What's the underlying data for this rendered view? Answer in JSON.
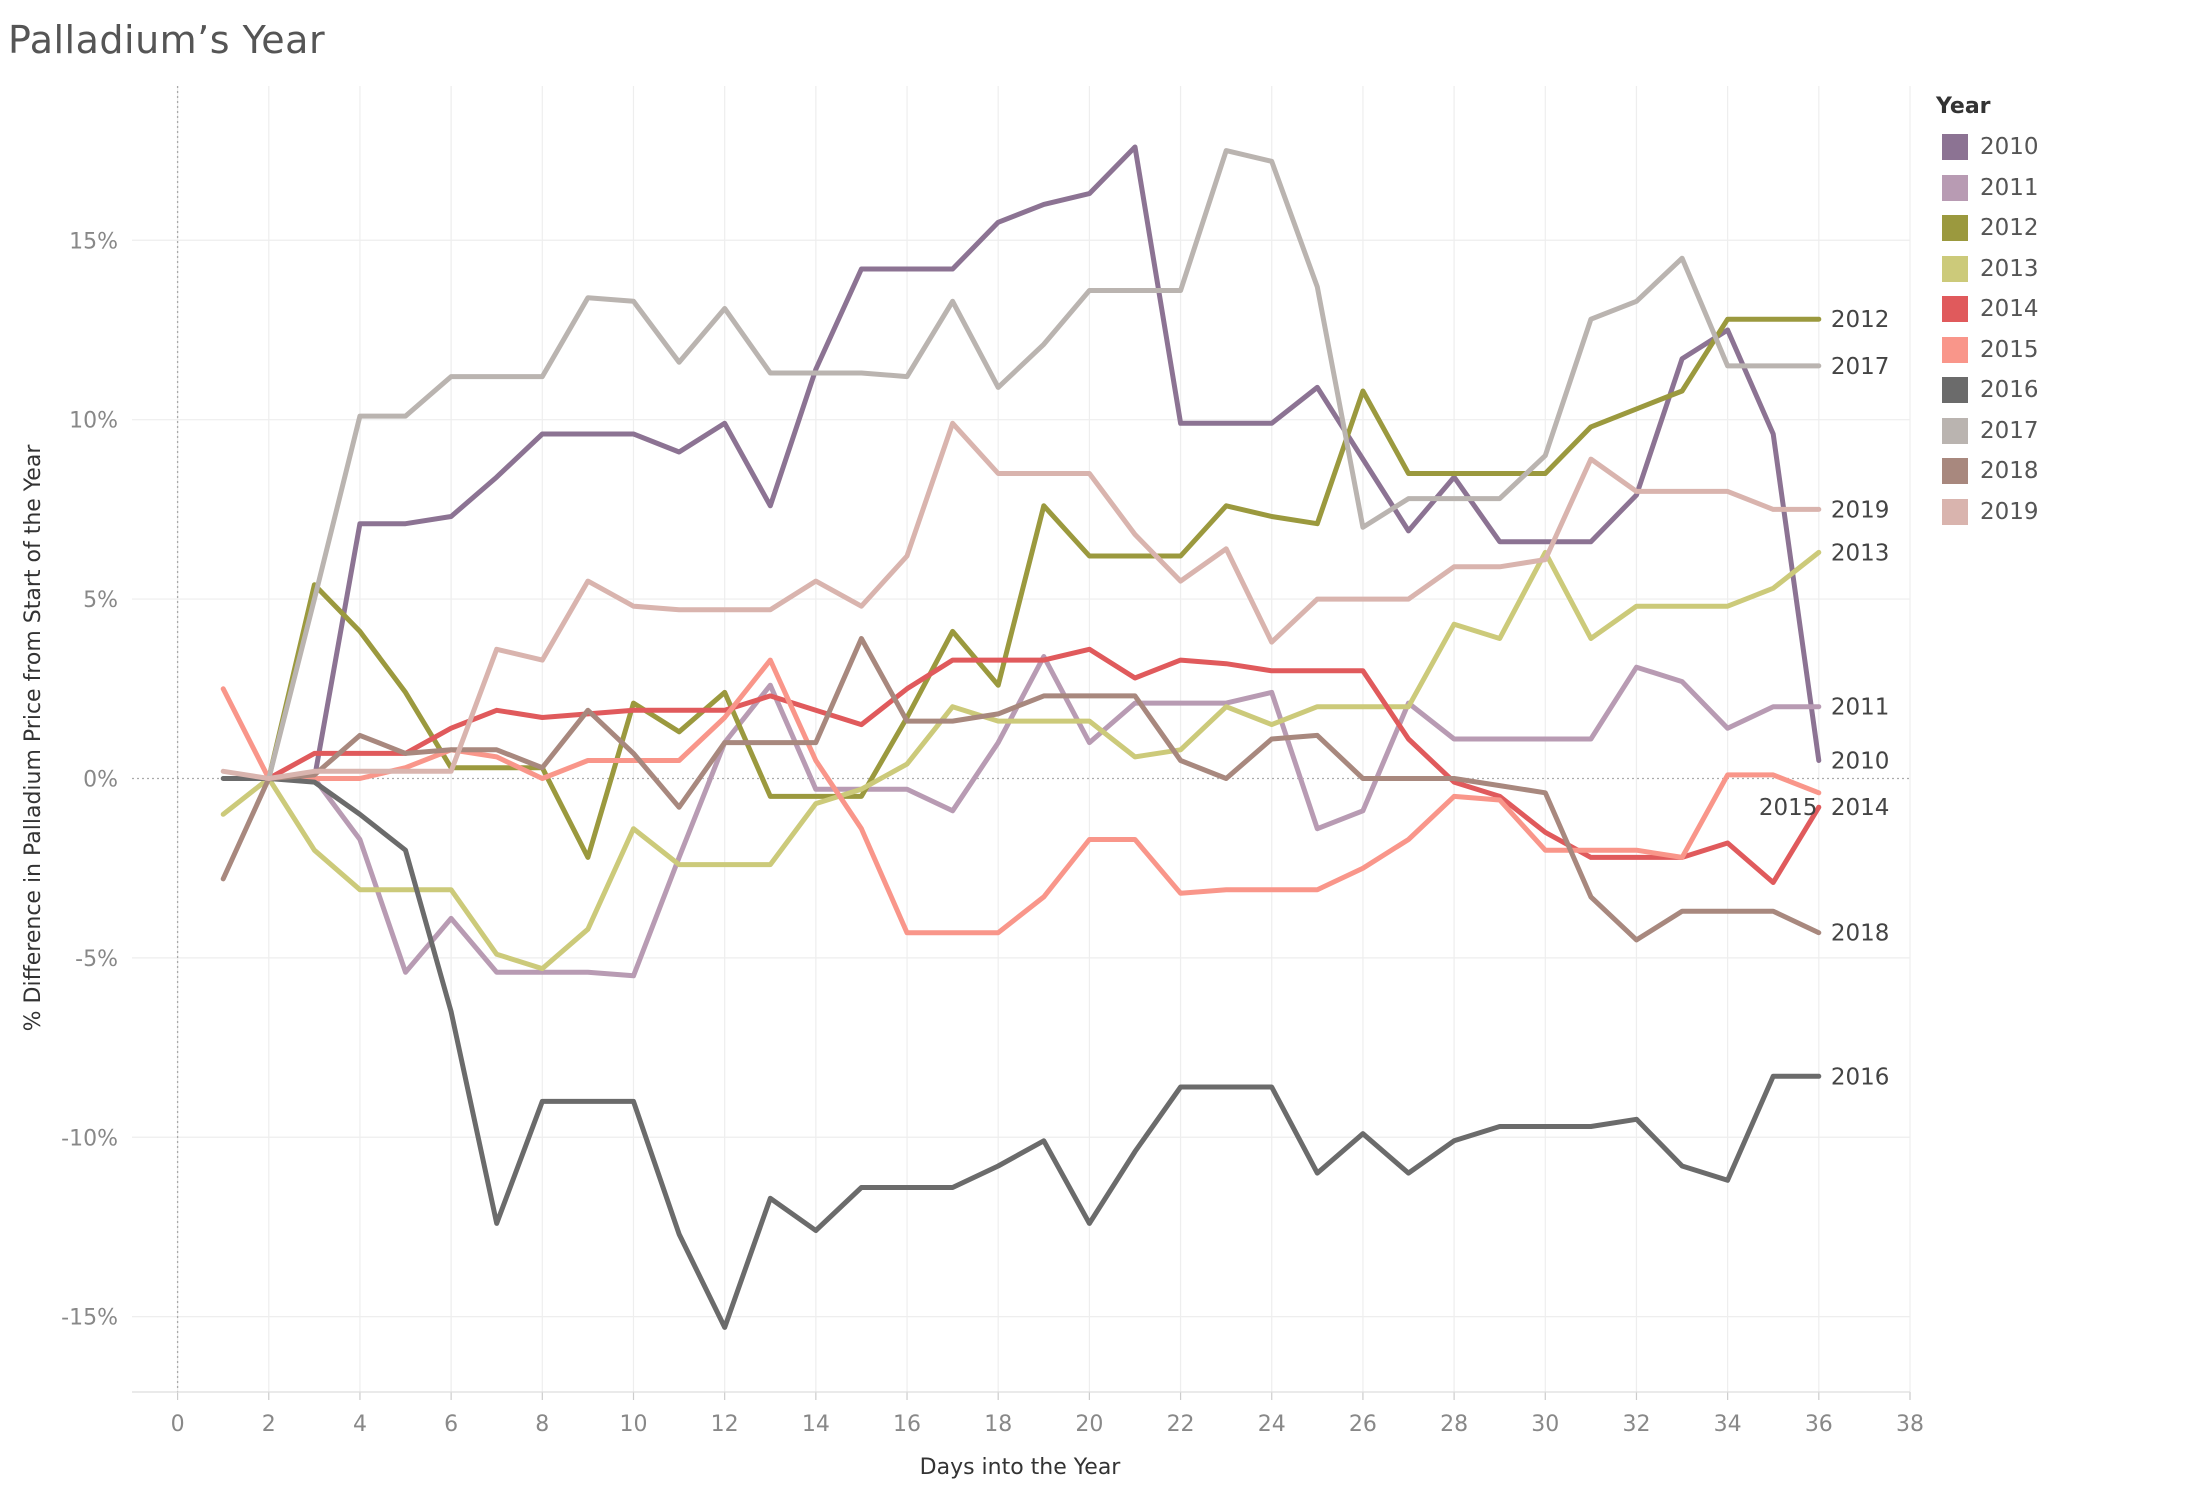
{
  "chart_data": {
    "type": "line",
    "title": "Palladium’s Year",
    "xlabel": "Days into the Year",
    "ylabel": "% Difference in Palladium Price from Start of the Year",
    "xlim": [
      -1,
      38
    ],
    "ylim": [
      -17.1,
      19.3
    ],
    "x_ticks": [
      0,
      2,
      4,
      6,
      8,
      10,
      12,
      14,
      16,
      18,
      20,
      22,
      24,
      26,
      28,
      30,
      32,
      34,
      36,
      38
    ],
    "y_ticks": [
      -15,
      -10,
      -5,
      0,
      5,
      10,
      15
    ],
    "y_tick_labels": [
      "-15%",
      "-10%",
      "-5%",
      "0%",
      "5%",
      "10%",
      "15%"
    ],
    "grid": true,
    "legend_title": "Year",
    "legend_position": "right",
    "x": [
      1,
      2,
      3,
      4,
      5,
      6,
      7,
      8,
      9,
      10,
      11,
      12,
      13,
      14,
      15,
      16,
      17,
      18,
      19,
      20,
      21,
      22,
      23,
      24,
      25,
      26,
      27,
      28,
      29,
      30,
      31,
      32,
      33,
      34,
      35,
      36
    ],
    "series": [
      {
        "name": "2010",
        "color": "#8c7393",
        "end_label": "2010",
        "values": [
          null,
          0,
          0,
          7.1,
          7.1,
          7.3,
          8.4,
          9.6,
          9.6,
          9.6,
          9.1,
          9.9,
          7.6,
          11.4,
          14.2,
          14.2,
          14.2,
          15.5,
          16.0,
          16.3,
          17.6,
          9.9,
          9.9,
          9.9,
          10.9,
          8.9,
          6.9,
          8.4,
          6.6,
          6.6,
          6.6,
          7.9,
          11.7,
          12.5,
          9.6,
          0.5
        ]
      },
      {
        "name": "2011",
        "color": "#b89bb3",
        "end_label": "2011",
        "values": [
          null,
          0,
          0,
          -1.7,
          -5.4,
          -3.9,
          -5.4,
          -5.4,
          -5.4,
          -5.5,
          -2.2,
          1.0,
          2.6,
          -0.3,
          -0.3,
          -0.3,
          -0.9,
          1.0,
          3.4,
          1.0,
          2.1,
          2.1,
          2.1,
          2.4,
          -1.4,
          -0.9,
          2.1,
          1.1,
          1.1,
          1.1,
          1.1,
          3.1,
          2.7,
          1.4,
          2.0,
          2.0
        ]
      },
      {
        "name": "2012",
        "color": "#9b993e",
        "end_label": "2012",
        "values": [
          null,
          0,
          5.4,
          4.1,
          2.4,
          0.3,
          0.3,
          0.3,
          -2.2,
          2.1,
          1.3,
          2.4,
          -0.5,
          -0.5,
          -0.5,
          1.7,
          4.1,
          2.6,
          7.6,
          6.2,
          6.2,
          6.2,
          7.6,
          7.3,
          7.1,
          10.8,
          8.5,
          8.5,
          8.5,
          8.5,
          9.8,
          10.3,
          10.8,
          12.8,
          12.8,
          12.8
        ]
      },
      {
        "name": "2013",
        "color": "#ccca7a",
        "end_label": "2013",
        "values": [
          -1.0,
          0,
          -2.0,
          -3.1,
          -3.1,
          -3.1,
          -4.9,
          -5.3,
          -4.2,
          -1.4,
          -2.4,
          -2.4,
          -2.4,
          -0.7,
          -0.3,
          0.4,
          2.0,
          1.6,
          1.6,
          1.6,
          0.6,
          0.8,
          2.0,
          1.5,
          2.0,
          2.0,
          2.0,
          4.3,
          3.9,
          6.3,
          3.9,
          4.8,
          4.8,
          4.8,
          5.3,
          6.3
        ]
      },
      {
        "name": "2014",
        "color": "#e05a5c",
        "end_label": "2014",
        "values": [
          null,
          0,
          0.7,
          0.7,
          0.7,
          1.4,
          1.9,
          1.7,
          1.8,
          1.9,
          1.9,
          1.9,
          2.3,
          1.9,
          1.5,
          2.5,
          3.3,
          3.3,
          3.3,
          3.6,
          2.8,
          3.3,
          3.2,
          3.0,
          3.0,
          3.0,
          1.1,
          -0.1,
          -0.5,
          -1.5,
          -2.2,
          -2.2,
          -2.2,
          -1.8,
          -2.9,
          -0.8
        ]
      },
      {
        "name": "2015",
        "color": "#f9968a",
        "end_label": "2015",
        "values": [
          2.5,
          0,
          0,
          0,
          0.3,
          0.8,
          0.6,
          0,
          0.5,
          0.5,
          0.5,
          1.7,
          3.3,
          0.5,
          -1.4,
          -4.3,
          -4.3,
          -4.3,
          -3.3,
          -1.7,
          -1.7,
          -3.2,
          -3.1,
          -3.1,
          -3.1,
          -2.5,
          -1.7,
          -0.5,
          -0.6,
          -2.0,
          -2.0,
          -2.0,
          -2.2,
          0.1,
          0.1,
          -0.4
        ]
      },
      {
        "name": "2016",
        "color": "#6b6b6b",
        "end_label": "2016",
        "values": [
          0,
          0,
          -0.1,
          -1.0,
          -2.0,
          -6.5,
          -12.4,
          -9.0,
          -9.0,
          -9.0,
          -12.7,
          -15.3,
          -11.7,
          -12.6,
          -11.4,
          -11.4,
          -11.4,
          -10.8,
          -10.1,
          -12.4,
          -10.4,
          -8.6,
          -8.6,
          -8.6,
          -11.0,
          -9.9,
          -11.0,
          -10.1,
          -9.7,
          -9.7,
          -9.7,
          -9.5,
          -10.8,
          -11.2,
          -8.3,
          -8.3
        ]
      },
      {
        "name": "2017",
        "color": "#bab4b0",
        "end_label": "2017",
        "values": [
          null,
          0,
          5.0,
          10.1,
          10.1,
          11.2,
          11.2,
          11.2,
          13.4,
          13.3,
          11.6,
          13.1,
          11.3,
          11.3,
          11.3,
          11.2,
          13.3,
          10.9,
          12.1,
          13.6,
          13.6,
          13.6,
          17.5,
          17.2,
          13.7,
          7.0,
          7.8,
          7.8,
          7.8,
          9.0,
          12.8,
          13.3,
          14.5,
          11.5,
          11.5,
          11.5
        ]
      },
      {
        "name": "2018",
        "color": "#a8887e",
        "end_label": "2018",
        "values": [
          -2.8,
          0,
          0.1,
          1.2,
          0.7,
          0.8,
          0.8,
          0.3,
          1.9,
          0.7,
          -0.8,
          1.0,
          1.0,
          1.0,
          3.9,
          1.6,
          1.6,
          1.8,
          2.3,
          2.3,
          2.3,
          0.5,
          0,
          1.1,
          1.2,
          0,
          0,
          0,
          -0.2,
          -0.4,
          -3.3,
          -4.5,
          -3.7,
          -3.7,
          -3.7,
          -4.3
        ]
      },
      {
        "name": "2019",
        "color": "#d9b4ae",
        "end_label": "2019",
        "values": [
          0.2,
          0,
          0.2,
          0.2,
          0.2,
          0.2,
          3.6,
          3.3,
          5.5,
          4.8,
          4.7,
          4.7,
          4.7,
          5.5,
          4.8,
          6.2,
          9.9,
          8.5,
          8.5,
          8.5,
          6.8,
          5.5,
          6.4,
          3.8,
          5.0,
          5.0,
          5.0,
          5.9,
          5.9,
          6.1,
          8.9,
          8.0,
          8.0,
          8.0,
          7.5,
          7.5
        ]
      }
    ]
  }
}
